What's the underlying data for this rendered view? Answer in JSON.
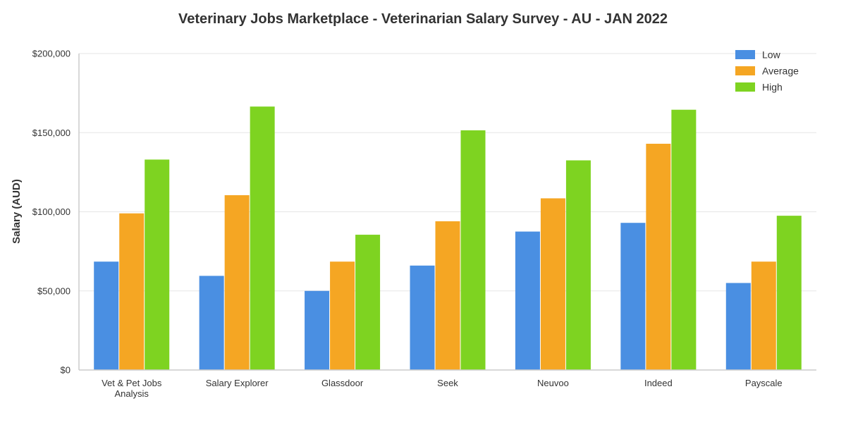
{
  "chart_data": {
    "type": "bar",
    "title": "Veterinary Jobs Marketplace - Veterinarian Salary Survey - AU - JAN 2022",
    "xlabel": "",
    "ylabel": "Salary (AUD)",
    "ylim": [
      0,
      200000
    ],
    "yticks": [
      0,
      50000,
      100000,
      150000,
      200000
    ],
    "ytick_labels": [
      "$0",
      "$50,000",
      "$100,000",
      "$150,000",
      "$200,000"
    ],
    "grid": true,
    "legend_position": "top-right",
    "categories": [
      [
        "Vet & Pet Jobs",
        "Analysis"
      ],
      [
        "Salary Explorer"
      ],
      [
        "Glassdoor"
      ],
      [
        "Seek"
      ],
      [
        "Neuvoo"
      ],
      [
        "Indeed"
      ],
      [
        "Payscale"
      ]
    ],
    "series": [
      {
        "name": "Low",
        "color": "#4a8fe2",
        "values": [
          68500,
          59500,
          50000,
          66000,
          87500,
          93000,
          55000
        ]
      },
      {
        "name": "Average",
        "color": "#f5a623",
        "values": [
          99000,
          110500,
          68500,
          94000,
          108500,
          143000,
          68500
        ]
      },
      {
        "name": "High",
        "color": "#7ed321",
        "values": [
          133000,
          166500,
          85500,
          151500,
          132500,
          164500,
          97500
        ]
      }
    ]
  }
}
